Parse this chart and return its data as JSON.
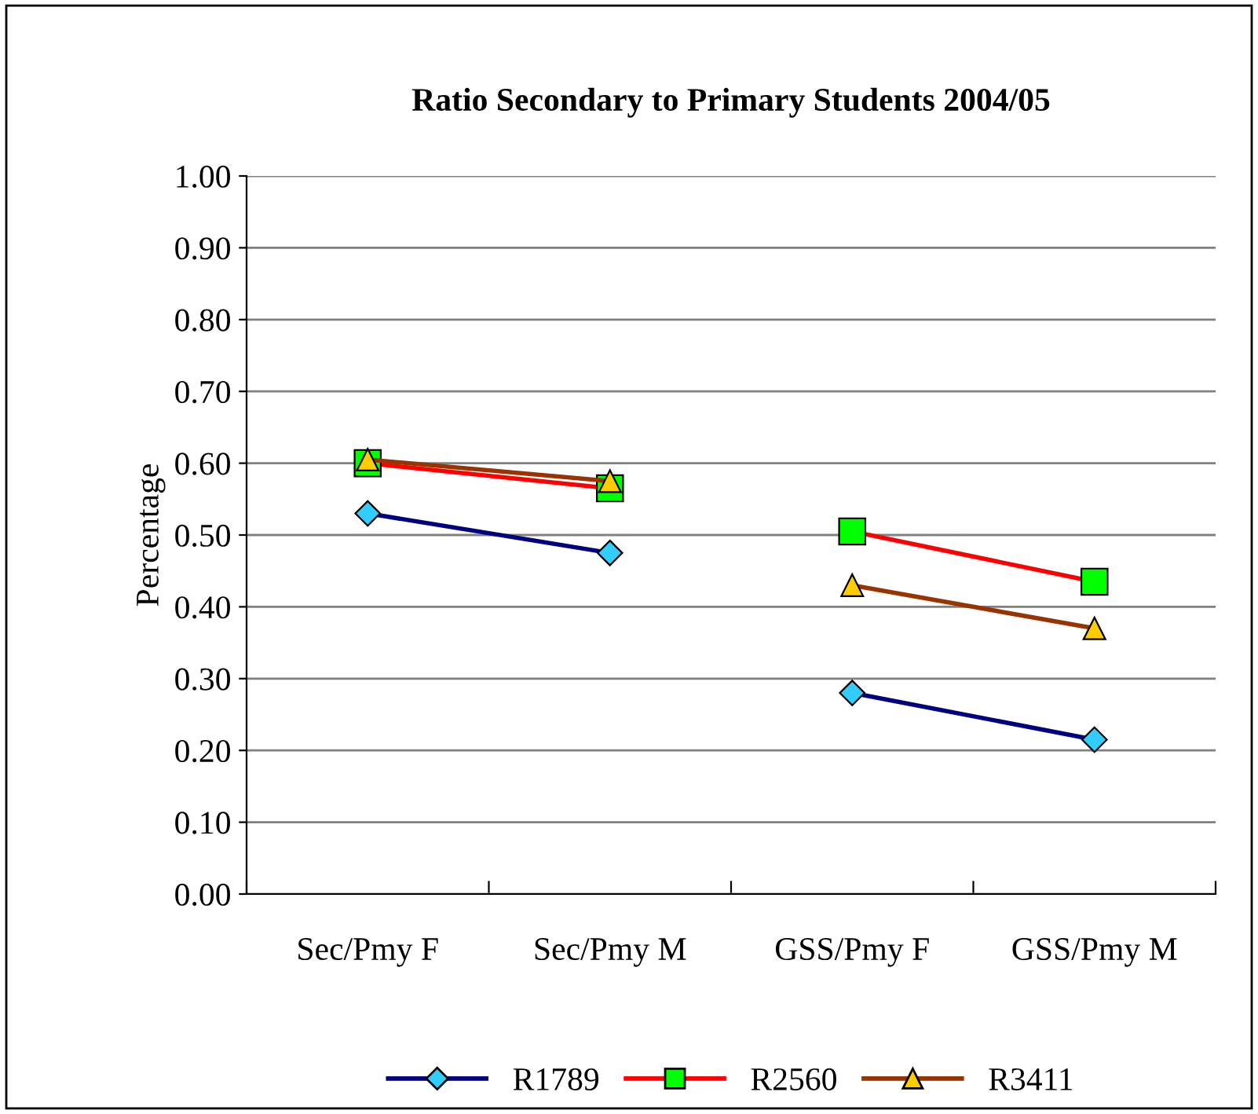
{
  "chart_data": {
    "type": "line",
    "title": "Ratio Secondary to Primary Students 2004/05",
    "ylabel": "Percentage",
    "categories": [
      "Sec/Pmy F",
      "Sec/Pmy M",
      "GSS/Pmy F",
      "GSS/Pmy M"
    ],
    "ylim": [
      0,
      1
    ],
    "yticks": [
      {
        "value": 0,
        "label": "0.00"
      },
      {
        "value": 0.1,
        "label": "0.10"
      },
      {
        "value": 0.2,
        "label": "0.20"
      },
      {
        "value": 0.3,
        "label": "0.30"
      },
      {
        "value": 0.4,
        "label": "0.40"
      },
      {
        "value": 0.5,
        "label": "0.50"
      },
      {
        "value": 0.6,
        "label": "0.60"
      },
      {
        "value": 0.7,
        "label": "0.70"
      },
      {
        "value": 0.8,
        "label": "0.80"
      },
      {
        "value": 0.9,
        "label": "0.90"
      },
      {
        "value": 1,
        "label": "1.00"
      }
    ],
    "grid": "y",
    "legend": "bottom",
    "series": [
      {
        "name": "R1789",
        "color": "#000080",
        "colors": [
          "#33ccff",
          "#33ccff",
          null,
          null
        ],
        "marker": "diamond",
        "values": [
          0.53,
          0.475,
          null,
          null
        ]
      },
      {
        "name": "R2560",
        "color": "#ff0000",
        "colors": [
          "#00ff00",
          "#00ff00",
          null,
          null
        ],
        "marker": "square",
        "values": [
          0.6,
          0.565,
          null,
          null
        ]
      },
      {
        "name": "R3411",
        "color": "#993300",
        "colors": [
          "#ffcc00",
          "#ffcc00",
          null,
          null
        ],
        "marker": "triangle",
        "values": [
          0.605,
          0.575,
          null,
          null
        ]
      },
      {
        "color": "#000080",
        "colors": [
          null,
          null,
          "#33ccff",
          "#33ccff"
        ],
        "marker": "diamond",
        "values": [
          null,
          null,
          0.28,
          0.215
        ]
      },
      {
        "color": "#ff0000",
        "colors": [
          null,
          null,
          "#00ff00",
          "#00ff00"
        ],
        "marker": "square",
        "values": [
          null,
          null,
          0.505,
          0.435
        ]
      },
      {
        "color": "#993300",
        "colors": [
          null,
          null,
          "#ffcc00",
          "#ffcc00"
        ],
        "marker": "triangle",
        "values": [
          null,
          null,
          0.43,
          0.37
        ]
      }
    ]
  }
}
